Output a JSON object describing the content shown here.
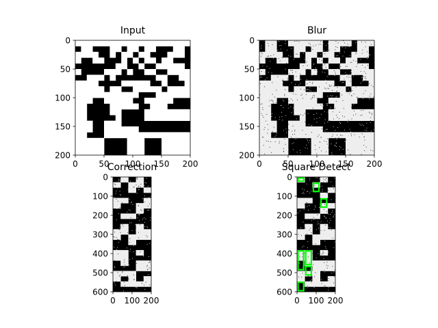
{
  "chart_data": [
    {
      "type": "image",
      "title": "Input",
      "xticks": [
        0,
        50,
        100,
        150,
        200
      ],
      "yticks": [
        0,
        50,
        100,
        150,
        200
      ],
      "xlim": [
        0,
        200
      ],
      "ylim": [
        200,
        0
      ],
      "grid": false,
      "noise": false,
      "content": "binary maze pattern",
      "cells": [
        [
          1,
          1,
          1,
          1,
          1,
          1,
          1,
          1,
          1,
          1,
          1,
          1,
          1,
          1,
          1,
          1,
          1,
          1,
          1,
          1
        ],
        [
          0,
          1,
          1,
          0,
          0,
          0,
          1,
          1,
          0,
          1,
          1,
          0,
          1,
          1,
          0,
          0,
          0,
          1,
          1,
          0
        ],
        [
          1,
          1,
          1,
          1,
          0,
          0,
          1,
          0,
          1,
          1,
          0,
          1,
          1,
          0,
          0,
          0,
          1,
          1,
          1,
          0
        ],
        [
          1,
          0,
          0,
          1,
          1,
          0,
          0,
          0,
          1,
          0,
          1,
          0,
          1,
          1,
          0,
          1,
          1,
          0,
          0,
          0
        ],
        [
          0,
          0,
          0,
          0,
          0,
          0,
          0,
          1,
          1,
          0,
          0,
          1,
          0,
          0,
          1,
          1,
          1,
          1,
          1,
          0
        ],
        [
          1,
          0,
          0,
          0,
          0,
          1,
          1,
          1,
          0,
          1,
          0,
          0,
          1,
          1,
          0,
          0,
          1,
          1,
          1,
          1
        ],
        [
          0,
          0,
          1,
          1,
          1,
          0,
          1,
          0,
          0,
          0,
          0,
          0,
          0,
          0,
          1,
          1,
          0,
          0,
          1,
          1
        ],
        [
          1,
          1,
          1,
          1,
          0,
          0,
          0,
          0,
          1,
          1,
          1,
          1,
          1,
          0,
          0,
          1,
          0,
          0,
          0,
          1
        ],
        [
          1,
          1,
          1,
          1,
          1,
          0,
          1,
          1,
          0,
          0,
          1,
          1,
          1,
          1,
          1,
          0,
          1,
          1,
          1,
          1
        ],
        [
          1,
          1,
          1,
          1,
          1,
          1,
          1,
          1,
          1,
          1,
          1,
          0,
          0,
          0,
          1,
          1,
          1,
          1,
          1,
          1
        ],
        [
          1,
          1,
          1,
          0,
          0,
          1,
          1,
          1,
          1,
          1,
          0,
          0,
          1,
          1,
          1,
          1,
          1,
          0,
          0,
          0
        ],
        [
          1,
          1,
          0,
          0,
          0,
          0,
          1,
          1,
          1,
          1,
          1,
          0,
          0,
          1,
          1,
          1,
          0,
          0,
          0,
          0
        ],
        [
          1,
          1,
          0,
          0,
          0,
          0,
          1,
          1,
          0,
          0,
          0,
          0,
          1,
          1,
          1,
          1,
          1,
          1,
          1,
          1
        ],
        [
          1,
          1,
          0,
          0,
          0,
          0,
          0,
          1,
          0,
          0,
          0,
          0,
          1,
          1,
          1,
          1,
          1,
          1,
          1,
          1
        ],
        [
          1,
          1,
          1,
          0,
          0,
          1,
          1,
          1,
          0,
          0,
          0,
          0,
          0,
          0,
          0,
          0,
          0,
          0,
          0,
          0
        ],
        [
          1,
          1,
          1,
          0,
          0,
          1,
          1,
          1,
          1,
          1,
          1,
          0,
          0,
          0,
          0,
          0,
          0,
          0,
          0,
          0
        ],
        [
          1,
          1,
          0,
          0,
          0,
          1,
          1,
          1,
          1,
          1,
          1,
          1,
          1,
          1,
          1,
          1,
          1,
          1,
          1,
          1
        ],
        [
          1,
          1,
          1,
          1,
          1,
          0,
          0,
          0,
          0,
          1,
          1,
          1,
          0,
          0,
          0,
          1,
          1,
          1,
          1,
          1
        ],
        [
          1,
          1,
          1,
          1,
          1,
          0,
          0,
          0,
          0,
          1,
          1,
          1,
          0,
          0,
          0,
          1,
          1,
          1,
          1,
          1
        ],
        [
          1,
          1,
          1,
          1,
          1,
          0,
          0,
          0,
          0,
          1,
          1,
          1,
          0,
          0,
          0,
          1,
          1,
          1,
          1,
          1
        ]
      ]
    },
    {
      "type": "image",
      "title": "Blur",
      "xticks": [
        0,
        50,
        100,
        150,
        200
      ],
      "yticks": [
        0,
        50,
        100,
        150,
        200
      ],
      "xlim": [
        0,
        200
      ],
      "ylim": [
        200,
        0
      ],
      "grid": false,
      "noise": true,
      "content": "binary maze pattern with salt-and-pepper noise",
      "cells": [
        [
          0,
          1,
          1,
          0,
          0,
          1,
          1,
          1,
          1,
          1,
          1,
          0,
          1,
          1,
          1,
          1,
          0,
          1,
          1,
          1
        ],
        [
          0,
          1,
          1,
          0,
          0,
          0,
          1,
          1,
          0,
          1,
          1,
          0,
          1,
          1,
          0,
          0,
          0,
          1,
          1,
          0
        ],
        [
          1,
          1,
          1,
          1,
          0,
          0,
          1,
          0,
          1,
          1,
          0,
          1,
          1,
          0,
          0,
          0,
          1,
          1,
          1,
          0
        ],
        [
          1,
          0,
          0,
          1,
          1,
          0,
          0,
          0,
          1,
          0,
          1,
          0,
          1,
          1,
          0,
          1,
          1,
          0,
          0,
          0
        ],
        [
          0,
          0,
          0,
          0,
          0,
          0,
          0,
          1,
          1,
          0,
          0,
          1,
          0,
          0,
          1,
          1,
          1,
          1,
          1,
          0
        ],
        [
          1,
          0,
          0,
          0,
          0,
          1,
          1,
          1,
          0,
          1,
          0,
          0,
          1,
          1,
          0,
          0,
          1,
          1,
          1,
          1
        ],
        [
          0,
          0,
          1,
          1,
          1,
          0,
          1,
          0,
          0,
          0,
          0,
          0,
          0,
          0,
          1,
          1,
          0,
          0,
          1,
          1
        ],
        [
          1,
          1,
          1,
          1,
          0,
          0,
          0,
          0,
          1,
          1,
          1,
          1,
          1,
          0,
          0,
          1,
          0,
          0,
          0,
          1
        ],
        [
          1,
          1,
          1,
          1,
          1,
          0,
          1,
          1,
          0,
          0,
          1,
          1,
          1,
          1,
          1,
          0,
          1,
          1,
          1,
          1
        ],
        [
          1,
          1,
          1,
          1,
          1,
          1,
          1,
          1,
          1,
          1,
          1,
          0,
          0,
          0,
          1,
          1,
          1,
          1,
          1,
          1
        ],
        [
          1,
          1,
          1,
          0,
          0,
          1,
          1,
          1,
          1,
          1,
          0,
          0,
          1,
          1,
          1,
          1,
          1,
          0,
          0,
          0
        ],
        [
          1,
          1,
          0,
          0,
          0,
          0,
          1,
          1,
          1,
          1,
          1,
          0,
          0,
          1,
          1,
          1,
          0,
          0,
          0,
          0
        ],
        [
          1,
          1,
          0,
          0,
          0,
          0,
          1,
          1,
          0,
          0,
          0,
          0,
          1,
          1,
          1,
          1,
          1,
          1,
          1,
          1
        ],
        [
          1,
          1,
          0,
          0,
          0,
          0,
          0,
          1,
          0,
          0,
          0,
          0,
          1,
          1,
          1,
          1,
          1,
          1,
          1,
          1
        ],
        [
          1,
          1,
          1,
          0,
          0,
          1,
          1,
          1,
          0,
          0,
          0,
          0,
          0,
          0,
          0,
          0,
          0,
          0,
          0,
          0
        ],
        [
          1,
          1,
          1,
          0,
          0,
          1,
          1,
          1,
          1,
          1,
          1,
          0,
          0,
          0,
          0,
          0,
          0,
          0,
          0,
          0
        ],
        [
          1,
          1,
          0,
          0,
          0,
          1,
          1,
          1,
          1,
          1,
          1,
          1,
          1,
          1,
          1,
          1,
          1,
          1,
          1,
          1
        ],
        [
          1,
          1,
          1,
          1,
          1,
          0,
          0,
          0,
          0,
          1,
          1,
          1,
          0,
          0,
          0,
          1,
          1,
          1,
          1,
          1
        ],
        [
          1,
          1,
          1,
          1,
          1,
          0,
          0,
          0,
          0,
          1,
          1,
          1,
          0,
          0,
          0,
          1,
          1,
          1,
          1,
          1
        ],
        [
          1,
          1,
          1,
          1,
          1,
          0,
          0,
          0,
          0,
          1,
          1,
          1,
          0,
          0,
          0,
          1,
          1,
          1,
          1,
          1
        ]
      ]
    },
    {
      "type": "image",
      "title": "Correction",
      "xticks": [
        0,
        100,
        200
      ],
      "yticks": [
        0,
        100,
        200,
        300,
        400,
        500,
        600
      ],
      "xlim": [
        0,
        200
      ],
      "ylim": [
        600,
        0
      ],
      "grid": false,
      "noise": true,
      "content": "perspective-corrected binary grid",
      "cells": [
        [
          0,
          1,
          0,
          1,
          0
        ],
        [
          1,
          0,
          1,
          1,
          0
        ],
        [
          0,
          0,
          1,
          0,
          1
        ],
        [
          0,
          0,
          0,
          0,
          0
        ],
        [
          1,
          1,
          0,
          0,
          1
        ],
        [
          1,
          0,
          0,
          1,
          1
        ],
        [
          0,
          0,
          0,
          1,
          0
        ],
        [
          0,
          1,
          1,
          0,
          0
        ],
        [
          0,
          0,
          0,
          0,
          0
        ],
        [
          0,
          1,
          0,
          1,
          0
        ],
        [
          1,
          1,
          0,
          1,
          1
        ],
        [
          1,
          0,
          1,
          1,
          1
        ],
        [
          0,
          0,
          1,
          0,
          0
        ],
        [
          0,
          0,
          0,
          0,
          0
        ],
        [
          1,
          1,
          0,
          1,
          0
        ],
        [
          1,
          1,
          0,
          0,
          0
        ],
        [
          0,
          1,
          0,
          1,
          1
        ],
        [
          0,
          0,
          0,
          1,
          1
        ],
        [
          1,
          1,
          1,
          0,
          0
        ],
        [
          1,
          0,
          1,
          0,
          1
        ],
        [
          0,
          1,
          1,
          1,
          1
        ],
        [
          0,
          0,
          0,
          0,
          0
        ]
      ]
    },
    {
      "type": "image",
      "title": "Square Detect",
      "xticks": [
        0,
        100,
        200
      ],
      "yticks": [
        0,
        100,
        200,
        300,
        400,
        500,
        600
      ],
      "xlim": [
        0,
        200
      ],
      "ylim": [
        600,
        0
      ],
      "grid": false,
      "noise": true,
      "content": "binary grid with detected squares outlined",
      "overlay_color": "#00ff00",
      "cells": [
        [
          1,
          0,
          0,
          1,
          0
        ],
        [
          0,
          0,
          1,
          0,
          0
        ],
        [
          0,
          0,
          0,
          0,
          1
        ],
        [
          0,
          0,
          0,
          1,
          0
        ],
        [
          1,
          1,
          0,
          0,
          0
        ],
        [
          1,
          0,
          0,
          1,
          1
        ],
        [
          0,
          0,
          0,
          1,
          0
        ],
        [
          0,
          1,
          1,
          0,
          0
        ],
        [
          0,
          0,
          0,
          0,
          0
        ],
        [
          0,
          1,
          0,
          1,
          0
        ],
        [
          1,
          1,
          0,
          1,
          1
        ],
        [
          1,
          0,
          1,
          1,
          1
        ],
        [
          0,
          0,
          1,
          0,
          0
        ],
        [
          0,
          0,
          0,
          0,
          0
        ],
        [
          1,
          1,
          0,
          1,
          0
        ],
        [
          1,
          1,
          0,
          0,
          0
        ],
        [
          0,
          1,
          1,
          1,
          1
        ],
        [
          0,
          0,
          1,
          1,
          1
        ],
        [
          1,
          1,
          1,
          0,
          0
        ],
        [
          1,
          0,
          1,
          0,
          1
        ],
        [
          0,
          1,
          1,
          1,
          1
        ],
        [
          0,
          0,
          0,
          0,
          0
        ]
      ],
      "detections": [
        {
          "x": [
            0,
            40
          ],
          "y": [
            0,
            27
          ]
        },
        {
          "x": [
            80,
            120
          ],
          "y": [
            27,
            81
          ]
        },
        {
          "x": [
            120,
            160
          ],
          "y": [
            109,
            163
          ]
        },
        {
          "x": [
            0,
            40
          ],
          "y": [
            381,
            490
          ]
        },
        {
          "x": [
            40,
            80
          ],
          "y": [
            381,
            463
          ]
        },
        {
          "x": [
            40,
            80
          ],
          "y": [
            463,
            517
          ]
        },
        {
          "x": [
            0,
            40
          ],
          "y": [
            545,
            600
          ]
        }
      ]
    }
  ]
}
